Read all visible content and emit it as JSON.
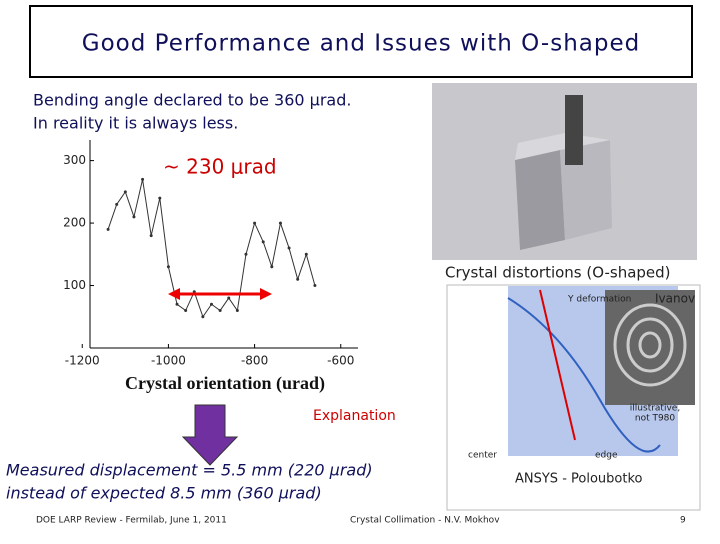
{
  "title": "Good Performance and Issues with O-shaped",
  "bullets": [
    "Bending angle declared to be 360 μrad.",
    "In reality it is always less."
  ],
  "annotation": "~ 230 μrad",
  "plot": {
    "x": [
      -1140,
      -1120,
      -1100,
      -1080,
      -1060,
      -1040,
      -1020,
      -1000,
      -980,
      -960,
      -940,
      -920,
      -900,
      -880,
      -860,
      -840,
      -820,
      -800,
      -780,
      -760,
      -740,
      -720,
      -700,
      -680,
      -660
    ],
    "values": [
      190,
      230,
      250,
      210,
      270,
      180,
      240,
      130,
      70,
      60,
      90,
      50,
      70,
      60,
      80,
      60,
      150,
      200,
      170,
      130,
      200,
      160,
      110,
      150,
      100
    ],
    "color": "#333333",
    "xlim": [
      -1182,
      -560
    ],
    "ylim": [
      0,
      333
    ],
    "xticks": [
      -1200,
      -1000,
      -800,
      -600
    ],
    "yticks": [
      100,
      200,
      300
    ],
    "x_label": "Crystal orientation (urad)"
  },
  "explanation": "Explanation",
  "measured": [
    "Measured displacement = 5.5 mm (220 μrad)",
    "instead of expected 8.5 mm (360 μrad)"
  ],
  "figure": {
    "title": "Crystal distortions (O-shaped)",
    "deformation_label": "Y deformation",
    "author": "Ivanov",
    "note": [
      "illustrative,",
      "not T980"
    ],
    "center": "center",
    "edge": "edge",
    "source": "ANSYS - Poloubotko"
  },
  "footer": {
    "left": "DOE LARP Review - Fermilab, June 1, 2011",
    "center": "Crystal Collimation - N.V. Mokhov",
    "page": "9"
  }
}
